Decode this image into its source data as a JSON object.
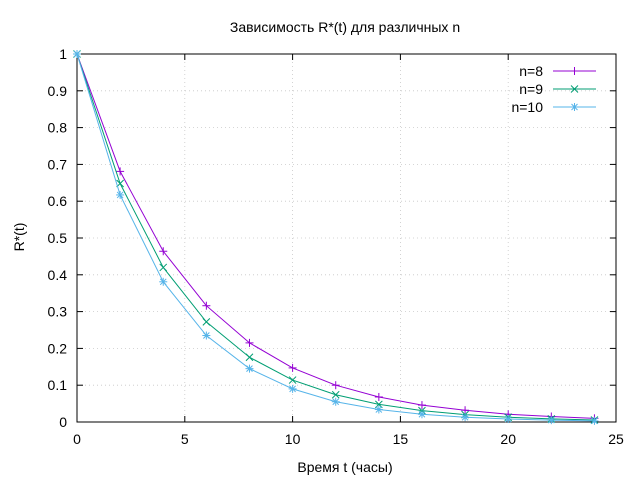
{
  "chart_data": {
    "type": "line",
    "title": "Зависимость R*(t) для различных n",
    "xlabel": "Время t (часы)",
    "ylabel": "R*(t)",
    "xlim": [
      0,
      25
    ],
    "ylim": [
      0,
      1
    ],
    "xticks": [
      0,
      5,
      10,
      15,
      20,
      25
    ],
    "yticks": [
      0,
      0.1,
      0.2,
      0.3,
      0.4,
      0.5,
      0.6,
      0.7,
      0.8,
      0.9,
      1
    ],
    "xtick_labels": [
      "0",
      "5",
      "10",
      "15",
      "20",
      "25"
    ],
    "ytick_labels": [
      "0",
      "0.1",
      "0.2",
      "0.3",
      "0.4",
      "0.5",
      "0.6",
      "0.7",
      "0.8",
      "0.9",
      "1"
    ],
    "grid": true,
    "legend_position": "top-right",
    "x": [
      0,
      2,
      4,
      6,
      8,
      10,
      12,
      14,
      16,
      18,
      20,
      22,
      24
    ],
    "series": [
      {
        "name": "n=8",
        "color": "#9400d3",
        "marker": "plus",
        "values": [
          1.0,
          0.681,
          0.464,
          0.316,
          0.215,
          0.147,
          0.1,
          0.068,
          0.046,
          0.032,
          0.021,
          0.015,
          0.01
        ]
      },
      {
        "name": "n=9",
        "color": "#009e73",
        "marker": "cross",
        "values": [
          1.0,
          0.648,
          0.42,
          0.272,
          0.176,
          0.114,
          0.074,
          0.048,
          0.031,
          0.02,
          0.013,
          0.0085,
          0.0055
        ]
      },
      {
        "name": "n=10",
        "color": "#56b4e9",
        "marker": "star",
        "values": [
          1.0,
          0.617,
          0.381,
          0.235,
          0.145,
          0.09,
          0.055,
          0.034,
          0.021,
          0.013,
          0.008,
          0.005,
          0.003
        ]
      }
    ]
  }
}
